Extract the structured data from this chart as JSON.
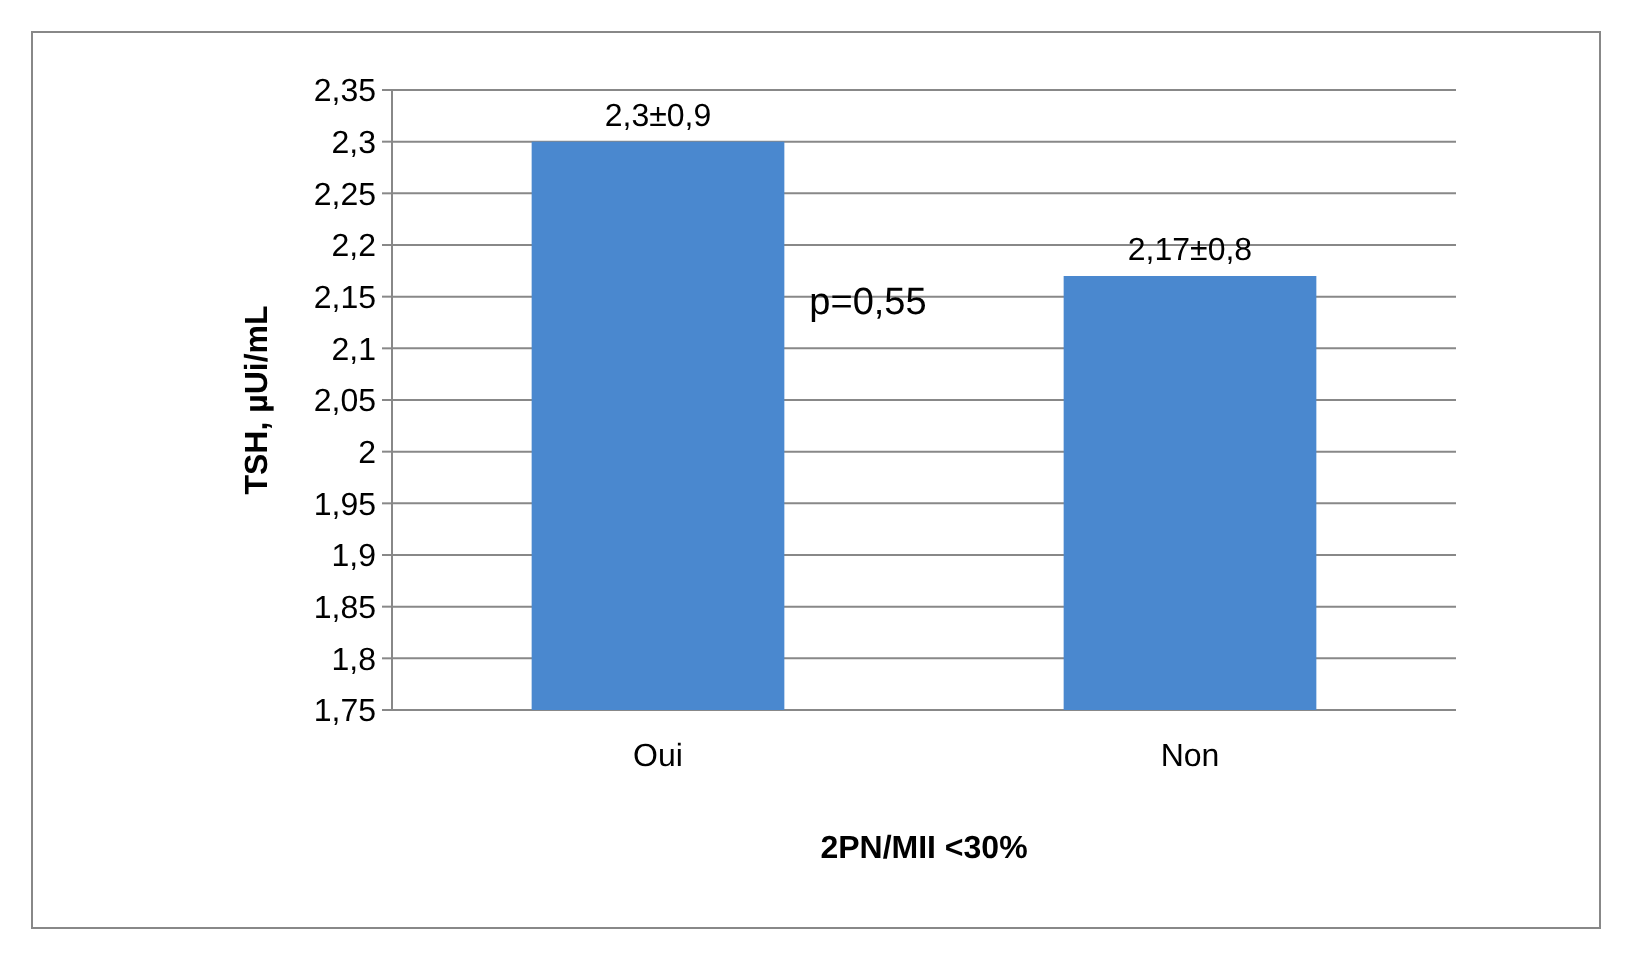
{
  "chart_data": {
    "type": "bar",
    "xlabel": "2PN/MII <30%",
    "ylabel": "TSH, µUi/mL",
    "categories": [
      "Oui",
      "Non"
    ],
    "values": [
      2.3,
      2.17
    ],
    "color": "#4a88cf",
    "value_labels": [
      "2,3±0,9",
      "2,17±0,8"
    ],
    "ylim": [
      1.75,
      2.35
    ],
    "yticks": [
      {
        "value": 1.75,
        "label": "1,75"
      },
      {
        "value": 1.8,
        "label": "1,8"
      },
      {
        "value": 1.85,
        "label": "1,85"
      },
      {
        "value": 1.9,
        "label": "1,9"
      },
      {
        "value": 1.95,
        "label": "1,95"
      },
      {
        "value": 2,
        "label": "2"
      },
      {
        "value": 2.05,
        "label": "2,05"
      },
      {
        "value": 2.1,
        "label": "2,1"
      },
      {
        "value": 2.15,
        "label": "2,15"
      },
      {
        "value": 2.2,
        "label": "2,2"
      },
      {
        "value": 2.25,
        "label": "2,25"
      },
      {
        "value": 2.3,
        "label": "2,3"
      },
      {
        "value": 2.35,
        "label": "2,35"
      }
    ],
    "grid": "y",
    "annotations": [
      "p=0,55"
    ]
  }
}
